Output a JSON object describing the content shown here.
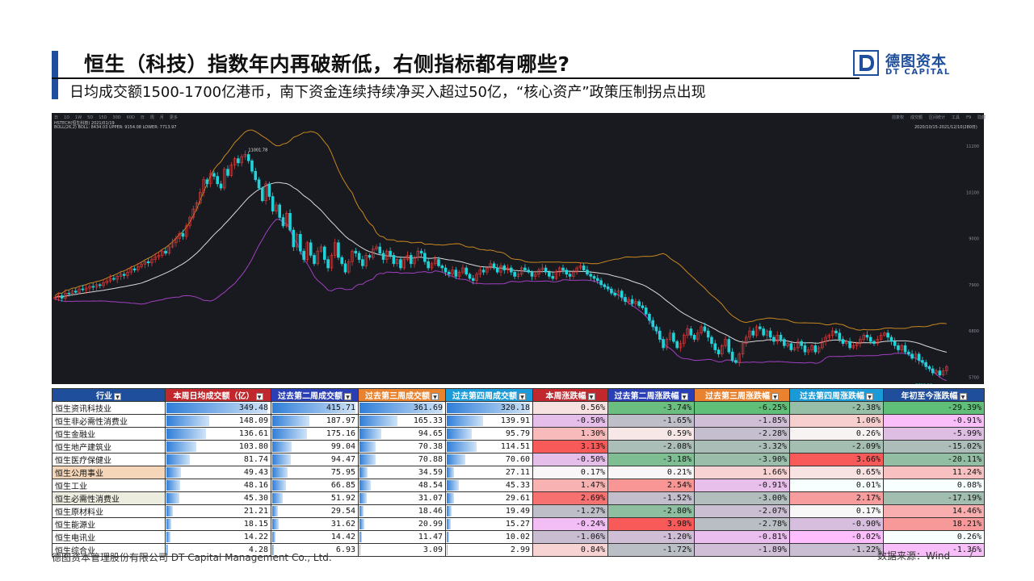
{
  "slide": {
    "title": "恒生（科技）指数年内再破新低，右侧指标都有哪些?",
    "subtitle": "日均成交额1500-1700亿港币，南下资金连续持续净买入超过50亿，“核心资产”政策压制拐点出现",
    "logo_cn": "德图资本",
    "logo_en": "DT CAPITAL",
    "footer_left": "德图资本管理股份有限公司  DT Capital Management Co., Ltd.",
    "source": "数据来源：Wind",
    "page_number": "7",
    "colors": {
      "accent": "#1f4e9c",
      "chart_bg": "#181a20",
      "candle_up": "#e23a3a",
      "candle_down": "#21d3d8",
      "boll_upper": "#c8861e",
      "boll_mid": "#d9d9d9",
      "boll_lower": "#a23fbf"
    }
  },
  "chart_toolbar": {
    "periods": [
      "日",
      "1D",
      "1W",
      "5D",
      "15D",
      "30D",
      "60D",
      "日",
      "周",
      "月",
      "更多"
    ],
    "info_line": "HSTECH(恒生科技)  2021/01/19",
    "boll_line": "BOLL(26,2)  BOLL: 8434.03  UPPER: 9154.08  LOWER: 7713.97",
    "range_label": "2020/10/15-2021/12/10(280日)",
    "right_tools": [
      "前复权",
      "成交额",
      "区间统计",
      "工具",
      "F9",
      "隐藏"
    ]
  },
  "chart_data": {
    "type": "candlestick",
    "title": "",
    "y_ticks": [
      11200,
      10100,
      9000,
      7900,
      6800,
      5700
    ],
    "y_range": [
      5650,
      11450
    ],
    "annotations": {
      "high": "11001.78",
      "low": "5710.13"
    },
    "closes": [
      7600,
      7640,
      7580,
      7700,
      7690,
      7750,
      7720,
      7800,
      7780,
      7820,
      7860,
      7840,
      7900,
      7880,
      7950,
      7990,
      8050,
      8030,
      8100,
      8150,
      8120,
      8200,
      8280,
      8250,
      8330,
      8390,
      8450,
      8420,
      8500,
      8560,
      8600,
      8700,
      8650,
      8800,
      8900,
      9000,
      9120,
      9050,
      9300,
      9500,
      9700,
      9850,
      10100,
      10400,
      10300,
      10550,
      10480,
      10300,
      10200,
      10650,
      10500,
      10750,
      10900,
      10800,
      10950,
      11000,
      10850,
      10600,
      10400,
      10200,
      9900,
      10300,
      10000,
      9650,
      9800,
      9500,
      9300,
      9600,
      9200,
      8800,
      9100,
      8700,
      8500,
      8900,
      8600,
      8400,
      8700,
      8800,
      8500,
      8300,
      8600,
      8900,
      8550,
      8400,
      8200,
      8450,
      8700,
      8650,
      8500,
      8350,
      8600,
      8550,
      8750,
      8800,
      8650,
      8500,
      8700,
      8600,
      8400,
      8500,
      8300,
      8500,
      8600,
      8400,
      8550,
      8700,
      8650,
      8450,
      8300,
      8400,
      8500,
      8350,
      8300,
      8200,
      8150,
      8250,
      8100,
      8200,
      8300,
      8150,
      8050,
      8000,
      8150,
      8250,
      8200,
      8300,
      8400,
      8300,
      8200,
      8350,
      8250,
      8300,
      8200,
      8100,
      8150,
      8300,
      8250,
      8200,
      8100,
      8150,
      8250,
      8300,
      8200,
      8100,
      8050,
      8200,
      8300,
      8250,
      8150,
      8100,
      8200,
      8300,
      8350,
      8250,
      8150,
      8100,
      8050,
      8000,
      7900,
      7850,
      7800,
      7700,
      7650,
      7750,
      7600,
      7500,
      7550,
      7450,
      7500,
      7400,
      7350,
      7200,
      7050,
      6900,
      6800,
      6600,
      6400,
      6600,
      6750,
      6550,
      6400,
      6500,
      6700,
      6850,
      6700,
      6600,
      6750,
      6900,
      6800,
      6650,
      6500,
      6350,
      6250,
      6450,
      6600,
      6300,
      6100,
      6050,
      6250,
      6500,
      6650,
      6800,
      6700,
      6900,
      6850,
      6700,
      6800,
      6650,
      6550,
      6700,
      6600,
      6450,
      6500,
      6350,
      6400,
      6550,
      6450,
      6300,
      6350,
      6450,
      6300,
      6400,
      6550,
      6650,
      6700,
      6800,
      6750,
      6600,
      6500,
      6550,
      6400,
      6450,
      6500,
      6600,
      6700,
      6650,
      6550,
      6500,
      6600,
      6700,
      6750,
      6650,
      6550,
      6450,
      6350,
      6450,
      6300,
      6250,
      6150,
      6250,
      6100,
      6050,
      5950,
      5900,
      5800,
      5850,
      5750,
      5850,
      5950
    ]
  },
  "table": {
    "headers": [
      {
        "label": "行业",
        "bg": "#1f4e9c"
      },
      {
        "label": "本周日均成交额（亿）",
        "bg": "#c0282d"
      },
      {
        "label": "过去第二周成交额",
        "bg": "#2a3fb5"
      },
      {
        "label": "过去第三周成交额",
        "bg": "#e8822f"
      },
      {
        "label": "过去第四周成交额",
        "bg": "#1a9ad7"
      },
      {
        "label": "本周涨跌幅",
        "bg": "#c0282d"
      },
      {
        "label": "过去第二周涨跌幅",
        "bg": "#2a3fb5"
      },
      {
        "label": "过去第三周涨跌幅",
        "bg": "#e8822f"
      },
      {
        "label": "过去第四周涨跌幅",
        "bg": "#1a9ad7"
      },
      {
        "label": "年初至今涨跌幅",
        "bg": "#1f4e9c"
      }
    ],
    "rows": [
      {
        "name": "恒生资讯科技业",
        "vals": [
          "349.48",
          "415.71",
          "361.69",
          "320.18",
          "0.56%",
          "-3.74%",
          "-6.25%",
          "-2.38%",
          "-29.39%"
        ]
      },
      {
        "name": "恒生非必需性消费业",
        "vals": [
          "148.09",
          "187.97",
          "165.33",
          "139.91",
          "-0.50%",
          "-1.65%",
          "-1.85%",
          "1.06%",
          "-0.91%"
        ]
      },
      {
        "name": "恒生金融业",
        "vals": [
          "136.61",
          "175.16",
          "94.65",
          "95.79",
          "1.30%",
          "0.59%",
          "-2.28%",
          "0.26%",
          "-5.99%"
        ]
      },
      {
        "name": "恒生地产建筑业",
        "vals": [
          "103.80",
          "99.04",
          "70.38",
          "114.51",
          "3.13%",
          "-2.08%",
          "-3.32%",
          "-2.09%",
          "-15.02%"
        ]
      },
      {
        "name": "恒生医疗保健业",
        "vals": [
          "81.74",
          "94.47",
          "70.88",
          "70.60",
          "-0.50%",
          "-3.18%",
          "-3.90%",
          "3.66%",
          "-20.11%"
        ]
      },
      {
        "name": "恒生公用事业",
        "vals": [
          "49.43",
          "75.95",
          "34.59",
          "27.11",
          "0.17%",
          "0.21%",
          "1.66%",
          "0.65%",
          "11.24%"
        ],
        "highlight": "#f6d6b8"
      },
      {
        "name": "恒生工业",
        "vals": [
          "48.16",
          "66.85",
          "48.54",
          "45.33",
          "1.47%",
          "2.54%",
          "-0.91%",
          "0.01%",
          "0.08%"
        ]
      },
      {
        "name": "恒生必需性消费业",
        "vals": [
          "45.30",
          "51.92",
          "31.07",
          "29.61",
          "2.69%",
          "-1.52%",
          "-3.00%",
          "2.17%",
          "-17.19%"
        ],
        "highlight": "#ececdf"
      },
      {
        "name": "恒生原材料业",
        "vals": [
          "21.21",
          "29.54",
          "18.46",
          "19.49",
          "-1.27%",
          "-2.80%",
          "-2.07%",
          "0.17%",
          "14.46%"
        ]
      },
      {
        "name": "恒生能源业",
        "vals": [
          "18.15",
          "31.62",
          "20.99",
          "15.27",
          "-0.24%",
          "3.98%",
          "-2.78%",
          "-0.90%",
          "18.21%"
        ]
      },
      {
        "name": "恒生电讯业",
        "vals": [
          "14.22",
          "14.42",
          "11.47",
          "10.02",
          "-1.06%",
          "-1.20%",
          "-0.81%",
          "-0.02%",
          "0.26%"
        ]
      },
      {
        "name": "恒生综合业",
        "vals": [
          "4.28",
          "6.93",
          "3.09",
          "2.99",
          "0.84%",
          "-1.72%",
          "-1.89%",
          "-1.22%",
          "-1.36%"
        ]
      }
    ]
  }
}
